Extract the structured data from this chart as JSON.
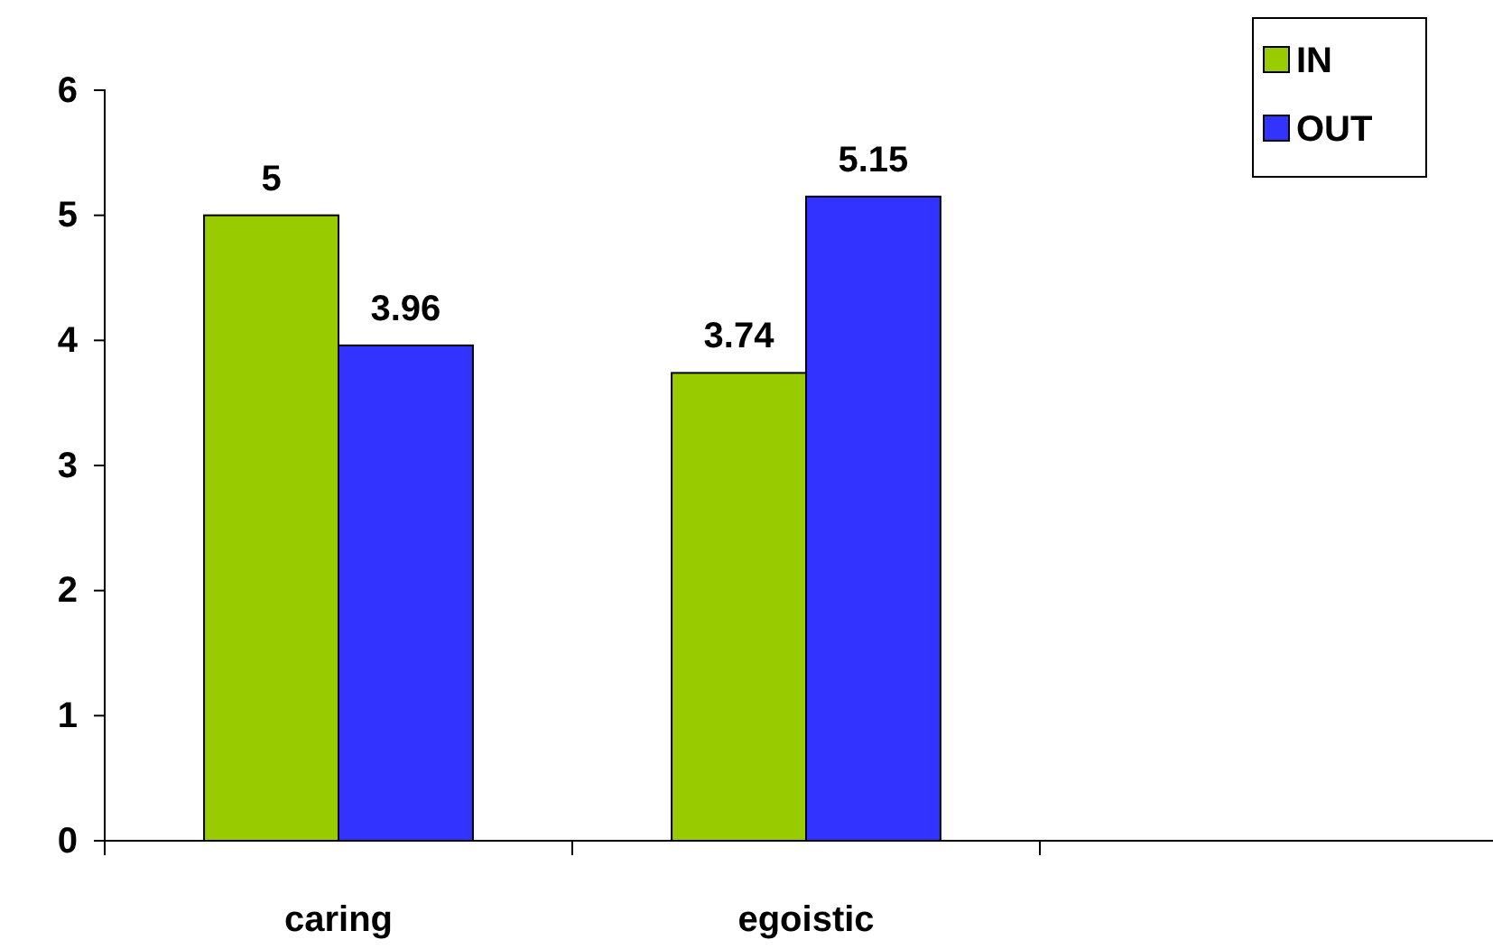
{
  "chart_data": {
    "type": "bar",
    "categories": [
      "caring",
      "egoistic",
      null
    ],
    "series": [
      {
        "name": "IN",
        "color": "#99cc00",
        "values": [
          5,
          3.74,
          null
        ]
      },
      {
        "name": "OUT",
        "color": "#3333ff",
        "values": [
          3.96,
          5.15,
          null
        ]
      }
    ],
    "ylim": [
      0,
      6
    ],
    "yticks": [
      0,
      1,
      2,
      3,
      4,
      5,
      6
    ],
    "grid": false,
    "legend": "top right",
    "data_labels": true
  }
}
